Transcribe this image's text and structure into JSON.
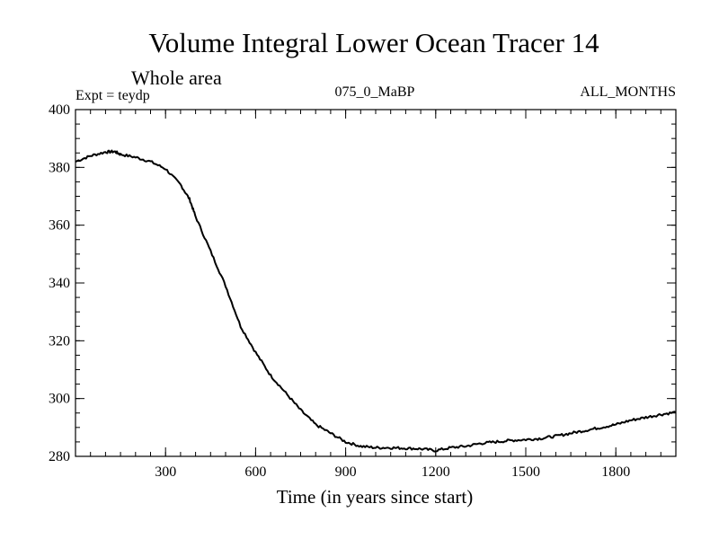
{
  "chart_data": {
    "type": "line",
    "title": "Volume Integral Lower Ocean Tracer 14",
    "subtitle": "Whole area",
    "annotations": {
      "left": "Expt = teydp",
      "center": "075_0_MaBP",
      "right": "ALL_MONTHS"
    },
    "xlabel": "Time (in years since start)",
    "ylabel": "",
    "xlim": [
      0,
      2000
    ],
    "ylim": [
      280,
      400
    ],
    "xticks": [
      300,
      600,
      900,
      1200,
      1500,
      1800
    ],
    "yticks": [
      280,
      300,
      320,
      340,
      360,
      380,
      400
    ],
    "x_minor_step": 50,
    "y_minor_step": 5,
    "grid": false,
    "line_color": "#000000",
    "series": [
      {
        "name": "Lower Ocean Tracer 14",
        "x": [
          0,
          50,
          100,
          130,
          150,
          200,
          250,
          300,
          350,
          380,
          400,
          450,
          500,
          550,
          600,
          650,
          700,
          750,
          800,
          850,
          900,
          950,
          1000,
          1050,
          1100,
          1150,
          1200,
          1250,
          1300,
          1350,
          1400,
          1450,
          1500,
          1550,
          1600,
          1650,
          1700,
          1750,
          1800,
          1850,
          1900,
          1950,
          2000
        ],
        "values": [
          382,
          384,
          385.3,
          385.5,
          384.5,
          383.5,
          382,
          379.5,
          374,
          369,
          363,
          351,
          339,
          325,
          316,
          308,
          302,
          296,
          291,
          288,
          285,
          283.5,
          283,
          283,
          282.8,
          282.6,
          282,
          283,
          283.5,
          284.5,
          285,
          285.5,
          285.8,
          286.2,
          287,
          288,
          289,
          290,
          291,
          292.5,
          293.5,
          294.5,
          295.3
        ]
      }
    ]
  }
}
